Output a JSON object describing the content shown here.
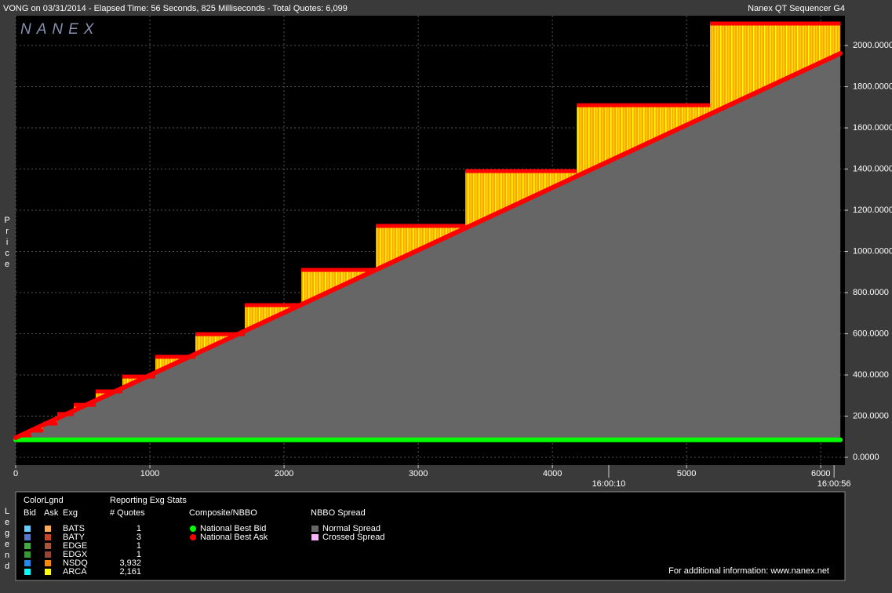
{
  "chart_data": {
    "type": "step",
    "title": "VONG on 03/31/2014  -  Elapsed Time: 56 Seconds, 825 Milliseconds  -  Total Quotes: 6,099",
    "subtitle": "Nanex QT Sequencer G4",
    "watermark": "NANEX",
    "y_label": "Price",
    "xlim": [
      0,
      6180
    ],
    "ylim": [
      -38,
      2145
    ],
    "xticks": [
      0,
      1000,
      2000,
      3000,
      4000,
      5000,
      6000
    ],
    "yticks": [
      {
        "value": 0,
        "label": "0.0000"
      },
      {
        "value": 200,
        "label": "200.0000"
      },
      {
        "value": 400,
        "label": "400.0000"
      },
      {
        "value": 600,
        "label": "600.0000"
      },
      {
        "value": 800,
        "label": "800.0000"
      },
      {
        "value": 1000,
        "label": "1000.0000"
      },
      {
        "value": 1200,
        "label": "1200.0000"
      },
      {
        "value": 1400,
        "label": "1400.0000"
      },
      {
        "value": 1600,
        "label": "1600.0000"
      },
      {
        "value": 1800,
        "label": "1800.0000"
      },
      {
        "value": 2000,
        "label": "2000.0000"
      }
    ],
    "time_labels": [
      {
        "value": 4420,
        "label": "16:00:10"
      },
      {
        "value": 6099,
        "label": "16:00:56"
      }
    ],
    "grid": true,
    "series": [
      {
        "name": "National Best Bid",
        "color": "#00ff00",
        "x": [
          0,
          6146
        ],
        "values": [
          85,
          85
        ]
      },
      {
        "name": "National Best Ask",
        "color": "#ff0000",
        "x": [
          0,
          6146
        ],
        "values": [
          95,
          1962
        ]
      }
    ],
    "ask_levels": {
      "color": "#ff0000",
      "x_start": [
        47,
        117,
        205,
        310,
        433,
        596,
        795,
        1041,
        1339,
        1708,
        2129,
        2684,
        3351,
        4181,
        5175
      ],
      "x_end": [
        117,
        205,
        310,
        433,
        596,
        795,
        1041,
        1339,
        1708,
        2129,
        2684,
        3351,
        4181,
        5175,
        6146
      ],
      "values": [
        107,
        130,
        164,
        210,
        255,
        320,
        392,
        488,
        598,
        739,
        910,
        1124,
        1390,
        1710,
        2107
      ]
    },
    "spread_legend": [
      {
        "name": "Normal Spread",
        "color": "#666666"
      },
      {
        "name": "Crossed Spread",
        "color": "#ffb3ff"
      }
    ],
    "legend": {
      "side_label": "Legend",
      "title": "ColorLgnd",
      "columns": [
        "Bid",
        "Ask",
        "Exg"
      ],
      "stats_title": "Reporting Exg Stats",
      "stats_column": "# Quotes",
      "composite_title": "Composite/NBBO",
      "spread_title": "NBBO Spread",
      "rows": [
        {
          "exchange": "BATS",
          "bid_color": "#66ccff",
          "ask_color": "#ffaa55",
          "quotes": "1"
        },
        {
          "exchange": "BATY",
          "bid_color": "#5577cc",
          "ask_color": "#cc4422",
          "quotes": "3"
        },
        {
          "exchange": "EDGE",
          "bid_color": "#44aa44",
          "ask_color": "#aa5533",
          "quotes": "1"
        },
        {
          "exchange": "EDGX",
          "bid_color": "#339933",
          "ask_color": "#994433",
          "quotes": "1"
        },
        {
          "exchange": "NSDQ",
          "bid_color": "#2288ee",
          "ask_color": "#ff8800",
          "quotes": "3,932"
        },
        {
          "exchange": "ARCA",
          "bid_color": "#00ffff",
          "ask_color": "#ffff00",
          "quotes": "2,161"
        }
      ],
      "footer": "For additional information: www.nanex.net"
    }
  }
}
